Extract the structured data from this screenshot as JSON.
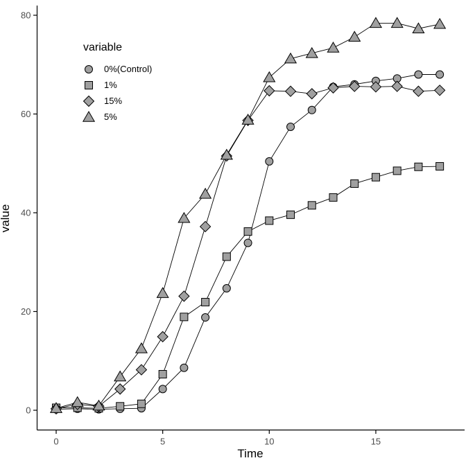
{
  "chart_data": {
    "type": "line",
    "title": "",
    "xlabel": "Time",
    "ylabel": "value",
    "x_ticks": [
      0,
      5,
      10,
      15
    ],
    "y_ticks": [
      0,
      20,
      40,
      60,
      80
    ],
    "xlim": [
      -0.9,
      19.1
    ],
    "ylim": [
      -4,
      82
    ],
    "grid": false,
    "legend": {
      "title": "variable",
      "position": "inside-top-left"
    },
    "x": [
      0,
      1,
      2,
      3,
      4,
      5,
      6,
      7,
      8,
      9,
      10,
      11,
      12,
      13,
      14,
      15,
      16,
      17,
      18
    ],
    "series": [
      {
        "name": "0%(Control)",
        "marker": "circle",
        "values": [
          0.2,
          0.3,
          0.2,
          0.3,
          0.4,
          4.3,
          8.6,
          18.8,
          24.7,
          33.9,
          50.4,
          57.4,
          60.8,
          65.5,
          66.0,
          66.7,
          67.2,
          68.0,
          68.0
        ]
      },
      {
        "name": "1%",
        "marker": "square",
        "values": [
          0.5,
          0.5,
          0.4,
          0.8,
          1.3,
          7.3,
          18.9,
          21.9,
          31.1,
          36.2,
          38.4,
          39.6,
          41.5,
          43.1,
          45.9,
          47.2,
          48.5,
          49.3,
          49.4
        ]
      },
      {
        "name": "15%",
        "marker": "diamond",
        "values": [
          0.3,
          1.2,
          0.8,
          4.3,
          8.2,
          14.9,
          23.1,
          37.2,
          51.5,
          58.7,
          64.7,
          64.6,
          64.1,
          65.3,
          65.6,
          65.5,
          65.6,
          64.6,
          64.8
        ]
      },
      {
        "name": "5%",
        "marker": "triangle",
        "values": [
          0.4,
          1.6,
          0.9,
          6.8,
          12.5,
          23.7,
          38.9,
          43.8,
          51.7,
          58.8,
          67.4,
          71.2,
          72.3,
          73.4,
          75.6,
          78.4,
          78.4,
          77.3,
          78.2
        ]
      }
    ],
    "colors": {
      "marker_fill": "#a0a0a0",
      "marker_stroke": "#000000",
      "line": "#000000",
      "axis": "#000000",
      "tick_label": "#4d4d4d",
      "background": "#ffffff"
    }
  }
}
